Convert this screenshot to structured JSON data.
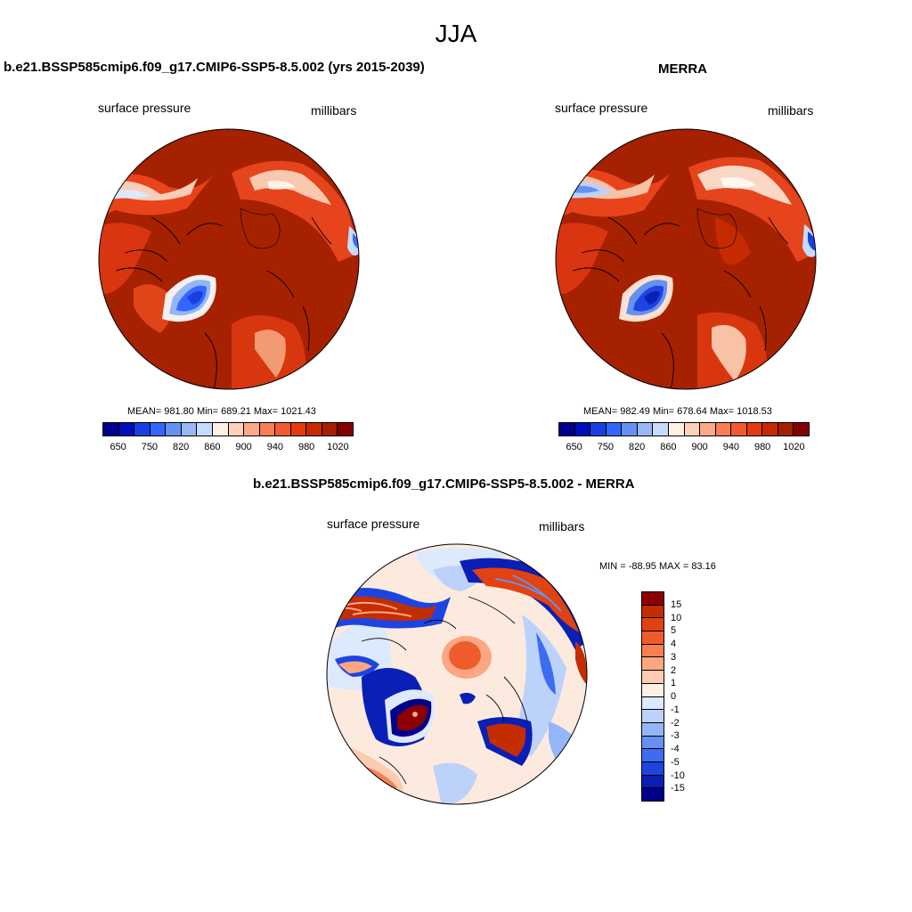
{
  "season": "JJA",
  "left_panel": {
    "title": "b.e21.BSSP585cmip6.f09_g17.CMIP6-SSP5-8.5.002 (yrs 2015-2039)",
    "variable": "surface pressure",
    "units": "millibars",
    "stats": "MEAN= 981.80  Min= 689.21  Max= 1021.43"
  },
  "right_panel": {
    "title": "MERRA",
    "variable": "surface pressure",
    "units": "millibars",
    "stats": "MEAN= 982.49  Min= 678.64  Max= 1018.53"
  },
  "diff_panel": {
    "title": "b.e21.BSSP585cmip6.f09_g17.CMIP6-SSP5-8.5.002 - MERRA",
    "variable": "surface pressure",
    "units": "millibars",
    "minmax": "MIN = -88.95 MAX =  83.16"
  },
  "abs_colorbar": {
    "colors": [
      "#00008b",
      "#0010b8",
      "#1a3fe0",
      "#3366ff",
      "#6690f0",
      "#99b6f5",
      "#c6dbff",
      "#fff0e6",
      "#fdd0b8",
      "#fca888",
      "#f77d57",
      "#f05a2e",
      "#e33a0e",
      "#c62a00",
      "#a61e00",
      "#820000"
    ],
    "tick_labels": [
      "650",
      "750",
      "820",
      "860",
      "900",
      "940",
      "980",
      "1020"
    ]
  },
  "diff_colorbar": {
    "colors": [
      "#8b0000",
      "#c32d00",
      "#e2420f",
      "#f05b2b",
      "#f88050",
      "#fca682",
      "#fdcbb0",
      "#fef0e6",
      "#dde9fc",
      "#bcd2fa",
      "#94b6f7",
      "#6690f2",
      "#3d6cf0",
      "#1e44e0",
      "#0a1fb5",
      "#00008b"
    ],
    "tick_labels": [
      "15",
      "10",
      "5",
      "4",
      "3",
      "2",
      "1",
      "0",
      "-1",
      "-2",
      "-3",
      "-4",
      "-5",
      "-10",
      "-15"
    ]
  },
  "land_color": "#000000"
}
